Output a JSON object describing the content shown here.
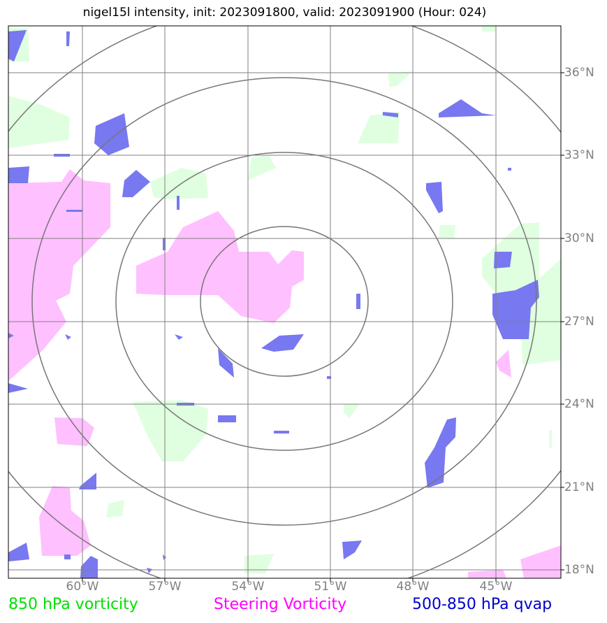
{
  "title": "nigel15l intensity, init: 2023091800, valid: 2023091900 (Hour: 024)",
  "lat_labels": [
    "36°N",
    "33°N",
    "30°N",
    "27°N",
    "24°N",
    "21°N",
    "18°N"
  ],
  "lon_labels": [
    "60°W",
    "57°W",
    "54°W",
    "51°W",
    "48°W",
    "45°W"
  ],
  "legend": {
    "vorticity_850": "850 hPa vorticity",
    "steering": "Steering Vorticity",
    "qvap": "500-850 hPa qvap"
  },
  "colors": {
    "vorticity_850": "#00e000",
    "steering": "#ff00ff",
    "qvap": "#0000cc",
    "fill_green": "#e0ffe0",
    "fill_magenta": "#ffc0ff",
    "fill_blue": "#7878f0",
    "grid": "#808080"
  }
}
